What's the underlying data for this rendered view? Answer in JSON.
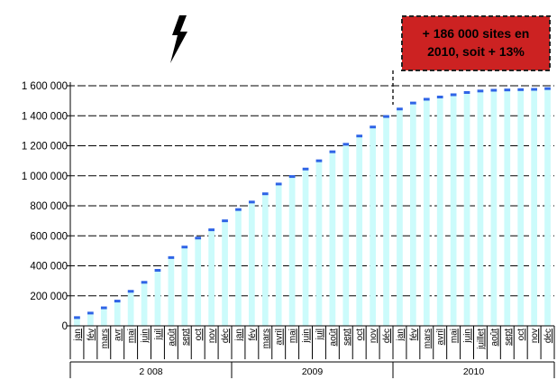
{
  "chart_data": {
    "type": "bar",
    "ylim": [
      0,
      1600000
    ],
    "yticks": [
      {
        "value": 0,
        "label": "0"
      },
      {
        "value": 200000,
        "label": "200 000"
      },
      {
        "value": 400000,
        "label": "400 000"
      },
      {
        "value": 600000,
        "label": "600 000"
      },
      {
        "value": 800000,
        "label": "800 000"
      },
      {
        "value": 1000000,
        "label": "1 000 000"
      },
      {
        "value": 1200000,
        "label": "1 200 000"
      },
      {
        "value": 1400000,
        "label": "1 400 000"
      },
      {
        "value": 1600000,
        "label": "1 600 000"
      }
    ],
    "categories": [
      "jan",
      "fév",
      "mars",
      "avr",
      "mai",
      "juin",
      "juil",
      "août",
      "sept",
      "oct",
      "nov",
      "déc",
      "jan",
      "fév",
      "mars",
      "avril",
      "mai",
      "juin",
      "juil",
      "août",
      "sept",
      "oct",
      "nov",
      "déc",
      "jan",
      "fév",
      "mars",
      "avril",
      "mai",
      "juin",
      "juillet",
      "août",
      "sept",
      "oct",
      "nov",
      "déc"
    ],
    "values": [
      55000,
      85000,
      120000,
      165000,
      230000,
      290000,
      370000,
      455000,
      525000,
      585000,
      640000,
      700000,
      775000,
      825000,
      880000,
      945000,
      995000,
      1045000,
      1100000,
      1160000,
      1210000,
      1265000,
      1325000,
      1395000,
      1445000,
      1485000,
      1510000,
      1525000,
      1540000,
      1555000,
      1565000,
      1570000,
      1572000,
      1574000,
      1576000,
      1581000
    ],
    "years": [
      {
        "label": "2 008",
        "start": 0,
        "end": 11
      },
      {
        "label": "2009",
        "start": 12,
        "end": 23
      },
      {
        "label": "2010",
        "start": 24,
        "end": 35
      }
    ],
    "callout": {
      "lines": [
        "+ 186 000 sites en",
        "2010, soit + 13%"
      ],
      "start_index": 24
    },
    "colors": {
      "bar": "#ccfbfb",
      "bar_top": "#2f64e6",
      "callout_bg": "#cc2222",
      "callout_border": "#222222"
    }
  },
  "decoration": {
    "lightning_icon": "lightning-bolt-icon"
  }
}
